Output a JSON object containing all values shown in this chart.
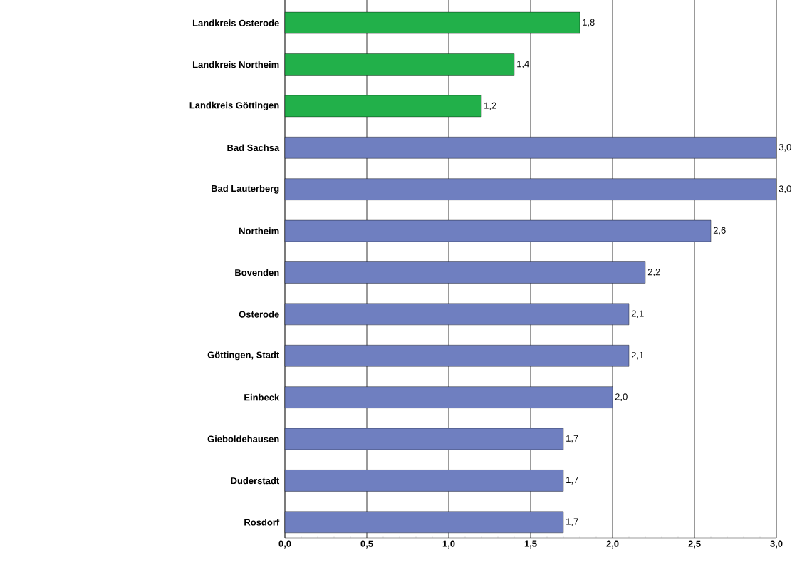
{
  "chart_data": {
    "type": "bar",
    "orientation": "horizontal",
    "categories": [
      "Landkreis Osterode",
      "Landkreis Northeim",
      "Landkreis Göttingen",
      "Bad Sachsa",
      "Bad Lauterberg",
      "Northeim",
      "Bovenden",
      "Osterode",
      "Göttingen, Stadt",
      "Einbeck",
      "Gieboldehausen",
      "Duderstadt",
      "Rosdorf"
    ],
    "values": [
      1.8,
      1.4,
      1.2,
      3.0,
      3.0,
      2.6,
      2.2,
      2.1,
      2.1,
      2.0,
      1.7,
      1.7,
      1.7
    ],
    "colors": [
      "#22b04a",
      "#22b04a",
      "#22b04a",
      "#6f7fc0",
      "#6f7fc0",
      "#6f7fc0",
      "#6f7fc0",
      "#6f7fc0",
      "#6f7fc0",
      "#6f7fc0",
      "#6f7fc0",
      "#6f7fc0",
      "#6f7fc0"
    ],
    "value_labels": [
      "1,8",
      "1,4",
      "1,2",
      "3,0",
      "3,0",
      "2,6",
      "2,2",
      "2,1",
      "2,1",
      "2,0",
      "1,7",
      "1,7",
      "1,7"
    ],
    "xlim": [
      0,
      3.0
    ],
    "xticks": [
      {
        "value": 0,
        "label": "0,0"
      },
      {
        "value": 0.5,
        "label": "0,5"
      },
      {
        "value": 1.0,
        "label": "1,0"
      },
      {
        "value": 1.5,
        "label": "1,5"
      },
      {
        "value": 2.0,
        "label": "2,0"
      },
      {
        "value": 2.5,
        "label": "2,5"
      },
      {
        "value": 3.0,
        "label": "3,0"
      }
    ],
    "grid": "x"
  }
}
